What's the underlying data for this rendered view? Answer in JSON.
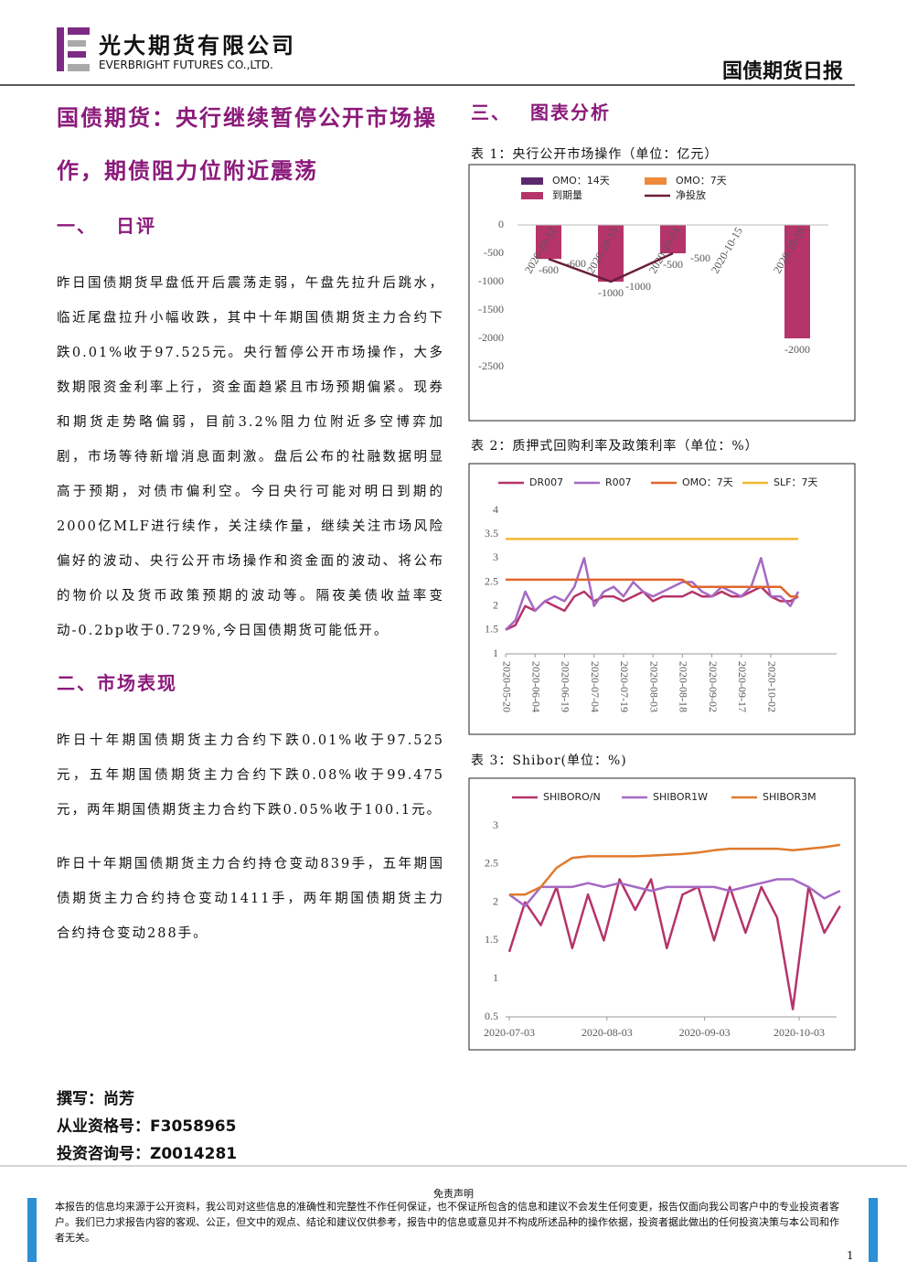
{
  "header": {
    "company": "光大期货有限公司",
    "company_en": "EVERBRIGHT FUTURES CO.,LTD.",
    "report": "国债期货日报"
  },
  "article": {
    "title": "国债期货：央行继续暂停公开市场操作，期债阻力位附近震荡",
    "sections": [
      {
        "heading": "一、 日评",
        "paragraphs": [
          "昨日国债期货早盘低开后震荡走弱，午盘先拉升后跳水，临近尾盘拉升小幅收跌，其中十年期国债期货主力合约下跌0.01%收于97.525元。央行暂停公开市场操作，大多数期限资金利率上行，资金面趋紧且市场预期偏紧。现券和期货走势略偏弱，目前3.2%阻力位附近多空博弈加剧，市场等待新增消息面刺激。盘后公布的社融数据明显高于预期，对债市偏利空。今日央行可能对明日到期的2000亿MLF进行续作，关注续作量，继续关注市场风险偏好的波动、央行公开市场操作和资金面的波动、将公布的物价以及货币政策预期的波动等。隔夜美债收益率变动-0.2bp收于0.729%,今日国债期货可能低开。"
        ]
      },
      {
        "heading": "二、市场表现",
        "paragraphs": [
          "昨日十年期国债期货主力合约下跌0.01%收于97.525元，五年期国债期货主力合约下跌0.08%收于99.475元，两年期国债期货主力合约下跌0.05%收于100.1元。",
          "昨日十年期国债期货主力合约持仓变动839手，五年期国债期货主力合约持仓变动1411手，两年期国债期货主力合约持仓变动288手。"
        ]
      }
    ]
  },
  "charts_heading": "三、 图表分析",
  "chart_data": [
    {
      "type": "bar",
      "title": "表 1：央行公开市场操作（单位：亿元）",
      "categories": [
        "2020-10-12",
        "2020-10-13",
        "2020-10-14",
        "2020-10-15",
        "2020-10-16"
      ],
      "series": [
        {
          "name": "OMO：14天",
          "type": "bar",
          "color": "#5b2a6e",
          "values": [
            null,
            null,
            null,
            null,
            null
          ]
        },
        {
          "name": "OMO：7天",
          "type": "bar",
          "color": "#ef8a3a",
          "values": [
            null,
            null,
            null,
            null,
            null
          ]
        },
        {
          "name": "到期量",
          "type": "bar",
          "color": "#b5346a",
          "values": [
            -600,
            -1000,
            -500,
            null,
            -2000
          ]
        },
        {
          "name": "净投放",
          "type": "line",
          "color": "#6b1e3c",
          "values": [
            -600,
            -1000,
            -500,
            null,
            null
          ]
        }
      ],
      "ylim": [
        -2500,
        0
      ],
      "yticks": [
        0,
        -500,
        -1000,
        -1500,
        -2000,
        -2500
      ],
      "grid": false
    },
    {
      "type": "line",
      "title": "表 2：质押式回购利率及政策利率（单位：%）",
      "x": [
        "2020-05-20",
        "2020-05-25",
        "2020-05-30",
        "2020-06-04",
        "2020-06-09",
        "2020-06-14",
        "2020-06-19",
        "2020-06-24",
        "2020-06-29",
        "2020-07-04",
        "2020-07-09",
        "2020-07-14",
        "2020-07-19",
        "2020-07-24",
        "2020-07-29",
        "2020-08-03",
        "2020-08-08",
        "2020-08-13",
        "2020-08-18",
        "2020-08-23",
        "2020-08-28",
        "2020-09-02",
        "2020-09-07",
        "2020-09-12",
        "2020-09-17",
        "2020-09-22",
        "2020-09-27",
        "2020-10-02",
        "2020-10-07",
        "2020-10-12",
        "2020-10-16"
      ],
      "series": [
        {
          "name": "DR007",
          "color": "#b5346a",
          "values": [
            1.5,
            1.6,
            2.0,
            1.9,
            2.1,
            2.0,
            1.9,
            2.2,
            2.3,
            2.1,
            2.2,
            2.2,
            2.1,
            2.2,
            2.3,
            2.1,
            2.2,
            2.2,
            2.2,
            2.3,
            2.2,
            2.2,
            2.3,
            2.2,
            2.2,
            2.3,
            2.4,
            2.2,
            2.1,
            2.1,
            2.2
          ]
        },
        {
          "name": "R007",
          "color": "#a569c4",
          "values": [
            1.5,
            1.7,
            2.3,
            1.9,
            2.1,
            2.2,
            2.1,
            2.4,
            3.0,
            2.0,
            2.3,
            2.4,
            2.2,
            2.5,
            2.3,
            2.2,
            2.3,
            2.4,
            2.5,
            2.5,
            2.3,
            2.2,
            2.4,
            2.3,
            2.2,
            2.4,
            3.0,
            2.2,
            2.2,
            2.0,
            2.3
          ]
        },
        {
          "name": "OMO：7天",
          "color": "#e0662c",
          "values": [
            2.55,
            2.55,
            2.55,
            2.55,
            2.55,
            2.55,
            2.55,
            2.55,
            2.55,
            2.55,
            2.55,
            2.55,
            2.55,
            2.55,
            2.55,
            2.55,
            2.55,
            2.55,
            2.55,
            2.4,
            2.4,
            2.4,
            2.4,
            2.4,
            2.4,
            2.4,
            2.4,
            2.4,
            2.4,
            2.2,
            2.2
          ]
        },
        {
          "name": "SLF：7天",
          "color": "#f5b731",
          "values": [
            3.4,
            3.4,
            3.4,
            3.4,
            3.4,
            3.4,
            3.4,
            3.4,
            3.4,
            3.4,
            3.4,
            3.4,
            3.4,
            3.4,
            3.4,
            3.4,
            3.4,
            3.4,
            3.4,
            3.4,
            3.4,
            3.4,
            3.4,
            3.4,
            3.4,
            3.4,
            3.4,
            3.4,
            3.4,
            3.4,
            3.4
          ]
        }
      ],
      "xticks": [
        "2020-05-20",
        "2020-06-04",
        "2020-06-19",
        "2020-07-04",
        "2020-07-19",
        "2020-08-03",
        "2020-08-18",
        "2020-09-02",
        "2020-09-17",
        "2020-10-02"
      ],
      "ylim": [
        1,
        4
      ],
      "yticks": [
        1,
        1.5,
        2,
        2.5,
        3,
        3.5,
        4
      ],
      "grid": false
    },
    {
      "type": "line",
      "title": "表 3：Shibor(单位：%)",
      "x": [
        "2020-07-03",
        "2020-07-08",
        "2020-07-13",
        "2020-07-18",
        "2020-07-23",
        "2020-07-28",
        "2020-08-02",
        "2020-08-07",
        "2020-08-12",
        "2020-08-17",
        "2020-08-22",
        "2020-08-27",
        "2020-09-01",
        "2020-09-06",
        "2020-09-11",
        "2020-09-16",
        "2020-09-21",
        "2020-09-26",
        "2020-10-01",
        "2020-10-06",
        "2020-10-11",
        "2020-10-16"
      ],
      "series": [
        {
          "name": "SHIBORO/N",
          "color": "#b5346a",
          "values": [
            1.35,
            2.0,
            1.7,
            2.2,
            1.4,
            2.1,
            1.5,
            2.3,
            1.9,
            2.3,
            1.4,
            2.1,
            2.2,
            1.5,
            2.2,
            1.6,
            2.2,
            1.8,
            0.6,
            2.2,
            1.6,
            1.95
          ]
        },
        {
          "name": "SHIBOR1W",
          "color": "#a569c4",
          "values": [
            2.1,
            1.95,
            2.2,
            2.2,
            2.2,
            2.25,
            2.2,
            2.25,
            2.2,
            2.15,
            2.2,
            2.2,
            2.2,
            2.2,
            2.15,
            2.2,
            2.25,
            2.3,
            2.3,
            2.2,
            2.05,
            2.15
          ]
        },
        {
          "name": "SHIBOR3M",
          "color": "#e07a2c",
          "values": [
            2.1,
            2.1,
            2.2,
            2.45,
            2.58,
            2.6,
            2.6,
            2.6,
            2.6,
            2.61,
            2.62,
            2.63,
            2.65,
            2.68,
            2.7,
            2.7,
            2.7,
            2.7,
            2.68,
            2.7,
            2.72,
            2.75
          ]
        }
      ],
      "xticks": [
        "2020-07-03",
        "2020-08-03",
        "2020-09-03",
        "2020-10-03"
      ],
      "ylim": [
        0.5,
        3
      ],
      "yticks": [
        0.5,
        1,
        1.5,
        2,
        2.5,
        3
      ],
      "grid": false
    }
  ],
  "author": [
    "撰写：尚芳",
    "从业资格号：F3058965",
    "投资咨询号：Z0014281"
  ],
  "disclaimer": {
    "title": "免责声明",
    "text": "本报告的信息均来源于公开资料，我公司对这些信息的准确性和完整性不作任何保证，也不保证所包含的信息和建议不会发生任何变更，报告仅面向我公司客户中的专业投资者客户。我们已力求报告内容的客观、公正，但文中的观点、结论和建议仅供参考，报告中的信息或意见并不构成所述品种的操作依据，投资者据此做出的任何投资决策与本公司和作者无关。"
  },
  "page_number": "1"
}
